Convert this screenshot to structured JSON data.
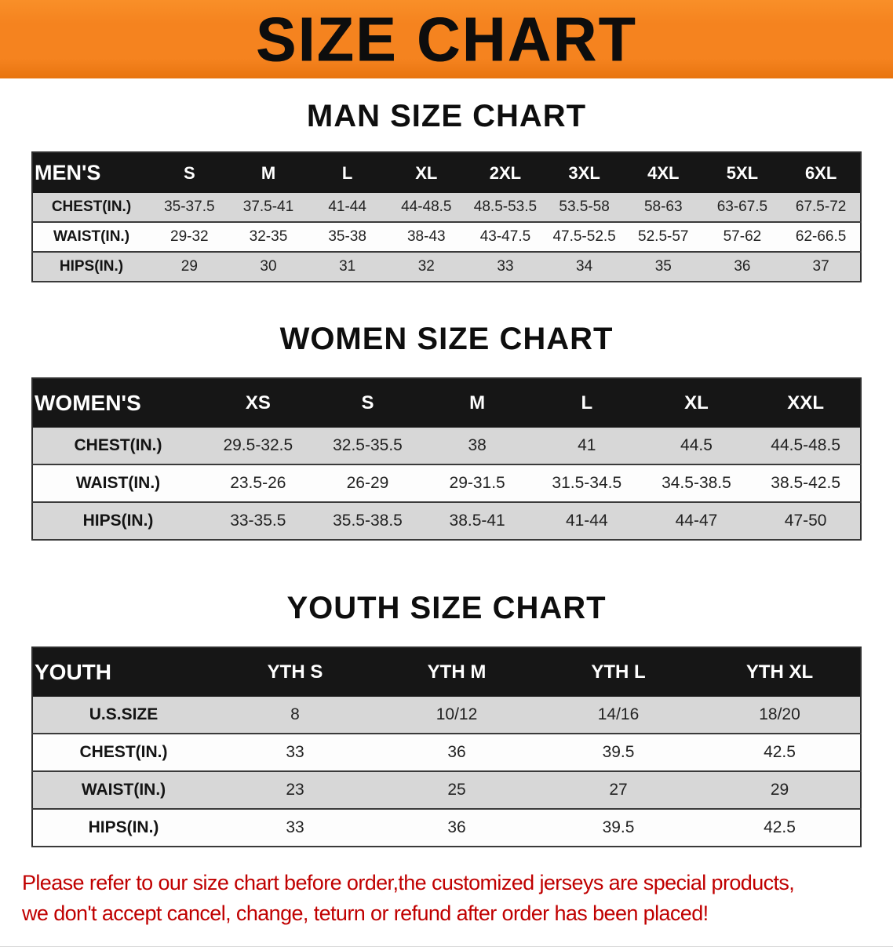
{
  "banner": {
    "title": "SIZE CHART"
  },
  "sections": {
    "men": {
      "heading": "MAN SIZE CHART",
      "table": {
        "header": [
          "MEN'S",
          "S",
          "M",
          "L",
          "XL",
          "2XL",
          "3XL",
          "4XL",
          "5XL",
          "6XL"
        ],
        "rows": [
          [
            "CHEST(IN.)",
            "35-37.5",
            "37.5-41",
            "41-44",
            "44-48.5",
            "48.5-53.5",
            "53.5-58",
            "58-63",
            "63-67.5",
            "67.5-72"
          ],
          [
            "WAIST(IN.)",
            "29-32",
            "32-35",
            "35-38",
            "38-43",
            "43-47.5",
            "47.5-52.5",
            "52.5-57",
            "57-62",
            "62-66.5"
          ],
          [
            "HIPS(IN.)",
            "29",
            "30",
            "31",
            "32",
            "33",
            "34",
            "35",
            "36",
            "37"
          ]
        ]
      }
    },
    "women": {
      "heading": "WOMEN SIZE CHART",
      "table": {
        "header": [
          "WOMEN'S",
          "XS",
          "S",
          "M",
          "L",
          "XL",
          "XXL"
        ],
        "rows": [
          [
            "CHEST(IN.)",
            "29.5-32.5",
            "32.5-35.5",
            "38",
            "41",
            "44.5",
            "44.5-48.5"
          ],
          [
            "WAIST(IN.)",
            "23.5-26",
            "26-29",
            "29-31.5",
            "31.5-34.5",
            "34.5-38.5",
            "38.5-42.5"
          ],
          [
            "HIPS(IN.)",
            "33-35.5",
            "35.5-38.5",
            "38.5-41",
            "41-44",
            "44-47",
            "47-50"
          ]
        ]
      }
    },
    "youth": {
      "heading": "YOUTH SIZE CHART",
      "table": {
        "header": [
          "YOUTH",
          "YTH S",
          "YTH M",
          "YTH L",
          "YTH XL"
        ],
        "rows": [
          [
            "U.S.SIZE",
            "8",
            "10/12",
            "14/16",
            "18/20"
          ],
          [
            "CHEST(IN.)",
            "33",
            "36",
            "39.5",
            "42.5"
          ],
          [
            "WAIST(IN.)",
            "23",
            "25",
            "27",
            "29"
          ],
          [
            "HIPS(IN.)",
            "33",
            "36",
            "39.5",
            "42.5"
          ]
        ]
      }
    }
  },
  "footer": {
    "line1": "Please refer to our size chart before order,the customized jerseys are special products,",
    "line2": "we don't accept cancel, change, teturn or refund after order has been placed!"
  },
  "colors": {
    "banner_bg": "#f5831f",
    "header_bg": "#161616",
    "row_alt_bg": "#d7d7d7",
    "footer_text": "#c00000"
  }
}
